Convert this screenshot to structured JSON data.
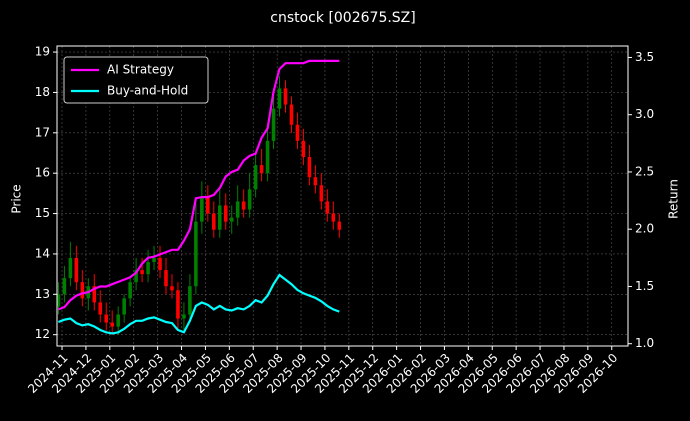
{
  "chart_data": {
    "type": "candlestick",
    "title": "cnstock [002675.SZ]",
    "ylabel": "Price",
    "y2label": "Return",
    "x": [
      -0.15,
      0.1,
      0.35,
      0.6,
      0.85,
      1.1,
      1.35,
      1.6,
      1.85,
      2.1,
      2.35,
      2.6,
      2.85,
      3.1,
      3.35,
      3.6,
      3.85,
      4.1,
      4.35,
      4.6,
      4.85,
      5.1,
      5.35,
      5.6,
      5.85,
      6.1,
      6.35,
      6.6,
      6.85,
      7.1,
      7.35,
      7.6,
      7.85,
      8.1,
      8.35,
      8.6,
      8.85,
      9.1,
      9.35,
      9.6,
      9.85,
      10.1,
      10.35,
      10.6,
      10.85,
      11.1,
      11.35,
      11.6
    ],
    "open": [
      12.7,
      13.0,
      13.4,
      13.9,
      13.3,
      12.9,
      13.2,
      12.8,
      12.5,
      12.3,
      12.2,
      12.5,
      12.9,
      13.3,
      13.6,
      13.5,
      13.8,
      13.9,
      13.6,
      13.2,
      13.1,
      12.4,
      12.5,
      13.2,
      14.8,
      15.4,
      15.0,
      14.6,
      15.2,
      14.8,
      14.9,
      15.3,
      15.1,
      15.6,
      16.2,
      16.0,
      16.8,
      17.6,
      18.1,
      17.7,
      17.2,
      16.8,
      16.4,
      15.9,
      15.7,
      15.3,
      15.0,
      14.8
    ],
    "high": [
      13.3,
      13.7,
      14.3,
      14.2,
      13.6,
      13.4,
      13.5,
      13.1,
      12.8,
      12.6,
      12.7,
      13.0,
      13.4,
      13.9,
      13.9,
      14.1,
      14.2,
      14.2,
      13.9,
      13.5,
      13.3,
      12.8,
      13.5,
      15.3,
      15.8,
      15.7,
      15.3,
      15.6,
      15.5,
      15.2,
      15.7,
      15.6,
      16.0,
      16.5,
      16.6,
      17.2,
      17.9,
      18.4,
      18.3,
      17.9,
      17.5,
      17.1,
      16.7,
      16.2,
      16.0,
      15.6,
      15.3,
      15.0
    ],
    "low": [
      12.5,
      12.8,
      13.2,
      13.1,
      12.7,
      12.6,
      12.6,
      12.3,
      12.1,
      12.0,
      12.0,
      12.3,
      12.7,
      13.1,
      13.3,
      13.3,
      13.6,
      13.4,
      13.0,
      12.9,
      12.1,
      12.1,
      12.3,
      13.0,
      14.5,
      14.8,
      14.4,
      14.4,
      14.6,
      14.5,
      14.7,
      14.9,
      14.9,
      15.4,
      15.8,
      15.8,
      16.6,
      17.4,
      17.5,
      17.0,
      16.6,
      16.2,
      15.7,
      15.5,
      15.1,
      14.8,
      14.6,
      14.4
    ],
    "close": [
      13.0,
      13.4,
      13.9,
      13.3,
      12.9,
      13.2,
      12.8,
      12.5,
      12.3,
      12.2,
      12.5,
      12.9,
      13.3,
      13.6,
      13.5,
      13.8,
      13.9,
      13.6,
      13.2,
      13.1,
      12.4,
      12.5,
      13.2,
      14.8,
      15.4,
      15.0,
      14.6,
      15.2,
      14.8,
      14.9,
      15.3,
      15.1,
      15.6,
      16.2,
      16.0,
      16.8,
      17.6,
      18.1,
      17.7,
      17.2,
      16.8,
      16.4,
      15.9,
      15.7,
      15.3,
      15.0,
      14.8,
      14.6
    ],
    "up_color": "#008000",
    "down_color": "#ff0000",
    "series": [
      {
        "name": "AI Strategy",
        "color": "#ff00ff",
        "axis": "y2",
        "values": [
          1.3,
          1.32,
          1.38,
          1.42,
          1.44,
          1.45,
          1.48,
          1.5,
          1.5,
          1.52,
          1.54,
          1.56,
          1.58,
          1.62,
          1.7,
          1.75,
          1.76,
          1.78,
          1.8,
          1.82,
          1.82,
          1.9,
          2.0,
          2.27,
          2.28,
          2.28,
          2.3,
          2.36,
          2.46,
          2.5,
          2.52,
          2.6,
          2.64,
          2.66,
          2.8,
          2.88,
          3.2,
          3.4,
          3.45,
          3.45,
          3.45,
          3.45,
          3.47,
          3.47,
          3.47,
          3.47,
          3.47,
          3.47
        ]
      },
      {
        "name": "Buy-and-Hold",
        "color": "#00ffff",
        "axis": "y2",
        "values": [
          1.19,
          1.21,
          1.22,
          1.18,
          1.16,
          1.17,
          1.15,
          1.12,
          1.1,
          1.09,
          1.1,
          1.13,
          1.17,
          1.2,
          1.2,
          1.22,
          1.23,
          1.21,
          1.19,
          1.18,
          1.12,
          1.1,
          1.2,
          1.33,
          1.36,
          1.34,
          1.3,
          1.33,
          1.3,
          1.29,
          1.31,
          1.3,
          1.33,
          1.38,
          1.36,
          1.42,
          1.52,
          1.6,
          1.56,
          1.52,
          1.47,
          1.44,
          1.42,
          1.4,
          1.37,
          1.33,
          1.3,
          1.28
        ]
      }
    ],
    "xlim": [
      -0.21,
      23.68
    ],
    "xticks": [
      {
        "value": 0,
        "label": "2024-11"
      },
      {
        "value": 1,
        "label": "2024-12"
      },
      {
        "value": 2,
        "label": "2025-01"
      },
      {
        "value": 3,
        "label": "2025-02"
      },
      {
        "value": 4,
        "label": "2025-03"
      },
      {
        "value": 5,
        "label": "2025-04"
      },
      {
        "value": 6,
        "label": "2025-05"
      },
      {
        "value": 7,
        "label": "2025-06"
      },
      {
        "value": 8,
        "label": "2025-07"
      },
      {
        "value": 9,
        "label": "2025-08"
      },
      {
        "value": 10,
        "label": "2025-09"
      },
      {
        "value": 11,
        "label": "2025-10"
      },
      {
        "value": 12,
        "label": "2025-11"
      },
      {
        "value": 13,
        "label": "2025-12"
      },
      {
        "value": 14,
        "label": "2026-01"
      },
      {
        "value": 15,
        "label": "2026-02"
      },
      {
        "value": 16,
        "label": "2026-03"
      },
      {
        "value": 17,
        "label": "2026-04"
      },
      {
        "value": 18,
        "label": "2026-05"
      },
      {
        "value": 19,
        "label": "2026-06"
      },
      {
        "value": 20,
        "label": "2026-07"
      },
      {
        "value": 21,
        "label": "2026-08"
      },
      {
        "value": 22,
        "label": "2026-09"
      },
      {
        "value": 23,
        "label": "2026-10"
      }
    ],
    "ylim": [
      11.72,
      19.15
    ],
    "yticks": [
      12,
      13,
      14,
      15,
      16,
      17,
      18,
      19
    ],
    "y2lim": [
      0.98,
      3.6
    ],
    "y2ticks": [
      {
        "value": 1.0,
        "label": "1.0"
      },
      1.5,
      {
        "value": 2.0,
        "label": "2.0"
      },
      2.5,
      {
        "value": 3.0,
        "label": "3.0"
      },
      3.5
    ],
    "grid": true,
    "legend": "upper left"
  }
}
